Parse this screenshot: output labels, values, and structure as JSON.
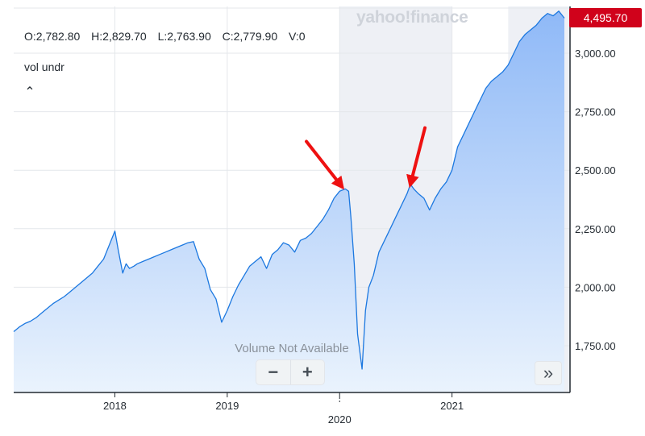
{
  "watermark": "yahoo!finance",
  "ohlc": {
    "open": "O:2,782.80",
    "high": "H:2,829.70",
    "low": "L:2,763.90",
    "close": "C:2,779.90",
    "volume": "V:0"
  },
  "volume_indicator_label": "vol undr",
  "collapse_icon": "caret-up-icon",
  "current_price_badge": "4,495.70",
  "volume_message": "Volume Not Available",
  "controls": {
    "zoom_out_label": "−",
    "zoom_in_label": "+",
    "scroll_right_label": "»"
  },
  "colors": {
    "line": "#1c78e0",
    "area_top": "#8fb9f7",
    "area_bottom": "#eaf3fd",
    "badge": "#d0021b",
    "arrow": "#ee1111",
    "shaded_region": "#eef0f5"
  },
  "chart_data": {
    "type": "area",
    "x_tick_labels": [
      "2018",
      "2019",
      "2020",
      "2021"
    ],
    "y_tick_labels": [
      "1,750.00",
      "2,000.00",
      "2,250.00",
      "2,500.00",
      "2,750.00",
      "3,000.00"
    ],
    "y_ticks": [
      1750,
      2000,
      2250,
      2500,
      2750,
      3000
    ],
    "ylim": [
      1550,
      3200
    ],
    "xlim": [
      2017.1,
      2022.05
    ],
    "grid": true,
    "shaded_ranges": [
      [
        2020.0,
        2021.0
      ],
      [
        2021.5,
        2022.05
      ]
    ],
    "series": [
      {
        "x": [
          2017.1,
          2017.15,
          2017.2,
          2017.25,
          2017.3,
          2017.35,
          2017.4,
          2017.45,
          2017.5,
          2017.55,
          2017.6,
          2017.65,
          2017.7,
          2017.75,
          2017.8,
          2017.85,
          2017.9,
          2017.95,
          2018.0,
          2018.03,
          2018.07,
          2018.1,
          2018.13,
          2018.17,
          2018.2,
          2018.25,
          2018.3,
          2018.35,
          2018.4,
          2018.45,
          2018.5,
          2018.55,
          2018.6,
          2018.65,
          2018.7,
          2018.75,
          2018.8,
          2018.85,
          2018.9,
          2018.95,
          2019.0,
          2019.05,
          2019.1,
          2019.15,
          2019.2,
          2019.25,
          2019.3,
          2019.35,
          2019.4,
          2019.45,
          2019.5,
          2019.55,
          2019.6,
          2019.65,
          2019.7,
          2019.75,
          2019.8,
          2019.85,
          2019.9,
          2019.95,
          2020.0,
          2020.05,
          2020.08,
          2020.1,
          2020.13,
          2020.16,
          2020.2,
          2020.23,
          2020.26,
          2020.3,
          2020.35,
          2020.4,
          2020.45,
          2020.5,
          2020.55,
          2020.6,
          2020.63,
          2020.66,
          2020.7,
          2020.75,
          2020.8,
          2020.85,
          2020.9,
          2020.95,
          2021.0,
          2021.05,
          2021.1,
          2021.15,
          2021.2,
          2021.25,
          2021.3,
          2021.35,
          2021.4,
          2021.45,
          2021.5,
          2021.55,
          2021.6,
          2021.65,
          2021.7,
          2021.75,
          2021.8,
          2021.85,
          2021.9,
          2021.95,
          2022.0
        ],
        "values": [
          1810,
          1830,
          1845,
          1855,
          1870,
          1890,
          1910,
          1930,
          1945,
          1960,
          1980,
          2000,
          2020,
          2040,
          2060,
          2090,
          2120,
          2180,
          2240,
          2160,
          2060,
          2100,
          2080,
          2090,
          2100,
          2110,
          2120,
          2130,
          2140,
          2150,
          2160,
          2170,
          2180,
          2190,
          2195,
          2120,
          2080,
          1990,
          1950,
          1850,
          1900,
          1960,
          2010,
          2050,
          2090,
          2110,
          2130,
          2080,
          2140,
          2160,
          2190,
          2180,
          2150,
          2200,
          2210,
          2230,
          2260,
          2290,
          2330,
          2380,
          2410,
          2420,
          2410,
          2300,
          2100,
          1800,
          1650,
          1900,
          2000,
          2050,
          2150,
          2200,
          2250,
          2300,
          2350,
          2400,
          2440,
          2420,
          2400,
          2380,
          2330,
          2380,
          2420,
          2450,
          2500,
          2600,
          2650,
          2700,
          2750,
          2800,
          2850,
          2880,
          2900,
          2920,
          2950,
          3000,
          3050,
          3080,
          3100,
          3120,
          3150,
          3170,
          3160,
          3180,
          3150
        ]
      }
    ],
    "annotations": [
      {
        "type": "arrow",
        "target_x": 2020.02,
        "target_y": 2430
      },
      {
        "type": "arrow",
        "target_x": 2020.63,
        "target_y": 2440
      }
    ]
  }
}
